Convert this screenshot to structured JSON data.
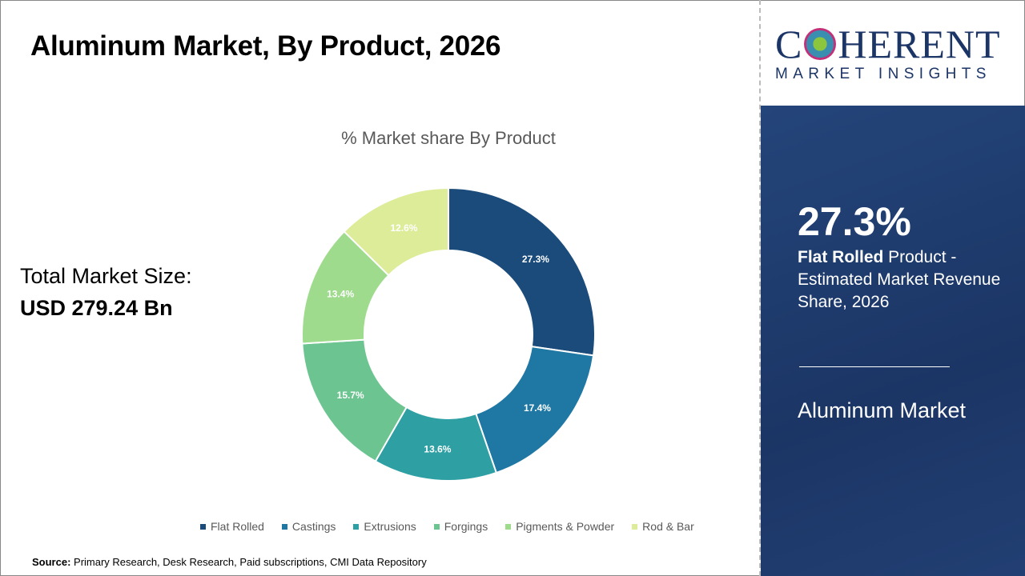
{
  "header": {
    "title": "Aluminum Market, By Product, 2026"
  },
  "total": {
    "label": "Total Market Size:",
    "value": "USD 279.24 Bn"
  },
  "logo": {
    "name": "COHERENT",
    "sub": "MARKET INSIGHTS"
  },
  "highlight": {
    "value": "27.3%",
    "bold": "Flat Rolled",
    "text": " Product - Estimated Market Revenue Share, 2026",
    "market": "Aluminum Market"
  },
  "source": {
    "label": "Source:",
    "text": " Primary Research, Desk Research, Paid subscriptions, CMI Data Repository"
  },
  "chart_data": {
    "type": "pie",
    "donut": true,
    "title": "% Market share By Product",
    "categories": [
      "Flat Rolled",
      "Castings",
      "Extrusions",
      "Forgings",
      "Pigments & Powder",
      "Rod & Bar"
    ],
    "values": [
      27.3,
      17.4,
      13.6,
      15.7,
      13.4,
      12.6
    ],
    "labels": [
      "27.3%",
      "17.4%",
      "13.6%",
      "15.7%",
      "13.4%",
      "12.6%"
    ],
    "colors": [
      "#1a4b7a",
      "#1f77a3",
      "#2e9fa3",
      "#6cc490",
      "#9edb8c",
      "#dcec98"
    ],
    "legend": "bottom"
  }
}
